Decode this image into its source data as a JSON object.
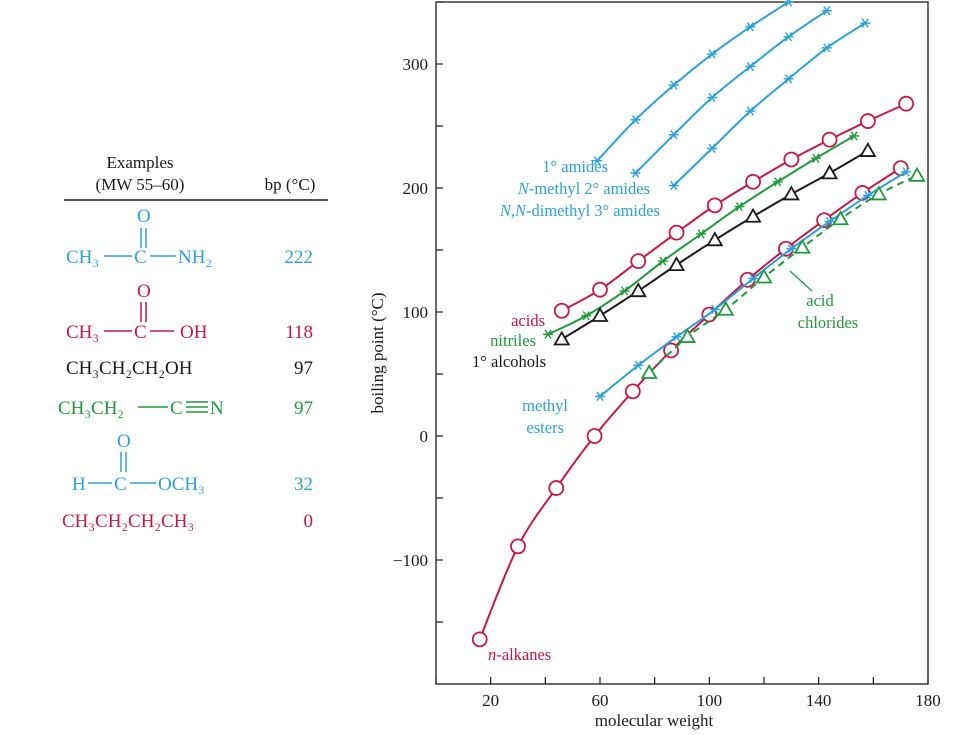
{
  "examples": {
    "header_examples": "Examples",
    "header_mw": "(MW 55–60)",
    "header_bp": "bp (°C)",
    "rows": [
      {
        "formula": "CH₃—C(=O)—NH₂",
        "parts": [
          "CH₃",
          "C",
          "NH₂"
        ],
        "bp": "222",
        "color": "#2aa2d9"
      },
      {
        "formula": "CH₃—C(=O)—OH",
        "parts": [
          "CH₃",
          "C",
          "OH"
        ],
        "bp": "118",
        "color": "#c8174a"
      },
      {
        "formula": "CH₃CH₂CH₂OH",
        "parts": [
          "CH₃CH₂CH₂OH"
        ],
        "bp": "97",
        "color": "#1a1a1a"
      },
      {
        "formula": "CH₃CH₂—C≡N",
        "parts": [
          "CH₃CH₂",
          "C",
          "N"
        ],
        "bp": "97",
        "color": "#1f9a3a"
      },
      {
        "formula": "H—C(=O)—OCH₃",
        "parts": [
          "H",
          "C",
          "OCH₃"
        ],
        "bp": "32",
        "color": "#2aa2d9"
      },
      {
        "formula": "CH₃CH₂CH₂CH₃",
        "parts": [
          "CH₃CH₂CH₂CH₃"
        ],
        "bp": "0",
        "color": "#c8174a"
      }
    ],
    "o_label": "O"
  },
  "chart_data": {
    "type": "line",
    "xlabel": "molecular weight",
    "ylabel": "boiling point (°C)",
    "xlim": [
      0,
      180
    ],
    "ylim": [
      -200,
      350
    ],
    "xticks": [
      20,
      60,
      100,
      140,
      180
    ],
    "yticks": [
      -100,
      0,
      100,
      200,
      300
    ],
    "grid": false,
    "series": [
      {
        "name": "n-alkanes",
        "color": "#c8174a",
        "marker": "circle",
        "dash": false,
        "points": [
          [
            16,
            -164
          ],
          [
            30,
            -89
          ],
          [
            44,
            -42
          ],
          [
            58,
            0
          ],
          [
            72,
            36
          ],
          [
            86,
            69
          ],
          [
            100,
            98
          ],
          [
            114,
            126
          ],
          [
            128,
            151
          ],
          [
            142,
            174
          ],
          [
            156,
            196
          ],
          [
            170,
            216
          ]
        ]
      },
      {
        "name": "acids",
        "color": "#c8174a",
        "marker": "circle",
        "dash": false,
        "points": [
          [
            46,
            101
          ],
          [
            60,
            118
          ],
          [
            74,
            141
          ],
          [
            88,
            164
          ],
          [
            102,
            186
          ],
          [
            116,
            205
          ],
          [
            130,
            223
          ],
          [
            144,
            239
          ],
          [
            158,
            254
          ],
          [
            172,
            268
          ]
        ]
      },
      {
        "name": "nitriles",
        "color": "#1f9a3a",
        "marker": "star",
        "dash": false,
        "points": [
          [
            41,
            82
          ],
          [
            55,
            97
          ],
          [
            69,
            117
          ],
          [
            83,
            141
          ],
          [
            97,
            163
          ],
          [
            111,
            185
          ],
          [
            125,
            205
          ],
          [
            139,
            224
          ],
          [
            153,
            242
          ]
        ]
      },
      {
        "name": "1° alcohols",
        "color": "#1a1a1a",
        "marker": "triangle",
        "dash": false,
        "points": [
          [
            46,
            78
          ],
          [
            60,
            97
          ],
          [
            74,
            117
          ],
          [
            88,
            138
          ],
          [
            102,
            158
          ],
          [
            116,
            177
          ],
          [
            130,
            195
          ],
          [
            144,
            212
          ],
          [
            158,
            230
          ]
        ]
      },
      {
        "name": "methyl esters",
        "color": "#2aa2d9",
        "marker": "star",
        "dash": false,
        "points": [
          [
            60,
            32
          ],
          [
            74,
            57
          ],
          [
            88,
            80
          ],
          [
            102,
            102
          ],
          [
            116,
            127
          ],
          [
            130,
            151
          ],
          [
            144,
            173
          ],
          [
            158,
            194
          ],
          [
            172,
            213
          ]
        ]
      },
      {
        "name": "acid chlorides",
        "color": "#1f9a3a",
        "marker": "triangle",
        "dash": true,
        "points": [
          [
            78,
            51
          ],
          [
            92,
            80
          ],
          [
            106,
            102
          ],
          [
            120,
            128
          ],
          [
            134,
            152
          ],
          [
            148,
            175
          ],
          [
            162,
            195
          ],
          [
            176,
            210
          ]
        ]
      },
      {
        "name": "1° amides",
        "color": "#2aa2d9",
        "marker": "star",
        "dash": false,
        "points": [
          [
            59,
            222
          ],
          [
            73,
            255
          ],
          [
            87,
            283
          ],
          [
            101,
            308
          ],
          [
            115,
            330
          ],
          [
            129,
            350
          ]
        ]
      },
      {
        "name": "N-methyl 2° amides",
        "color": "#2aa2d9",
        "marker": "star",
        "dash": false,
        "points": [
          [
            73,
            212
          ],
          [
            87,
            243
          ],
          [
            101,
            273
          ],
          [
            115,
            298
          ],
          [
            129,
            322
          ],
          [
            143,
            343
          ]
        ]
      },
      {
        "name": "N,N-dimethyl 3° amides",
        "color": "#2aa2d9",
        "marker": "star",
        "dash": false,
        "points": [
          [
            87,
            202
          ],
          [
            101,
            232
          ],
          [
            115,
            262
          ],
          [
            129,
            288
          ],
          [
            143,
            313
          ],
          [
            157,
            333
          ]
        ]
      }
    ]
  }
}
